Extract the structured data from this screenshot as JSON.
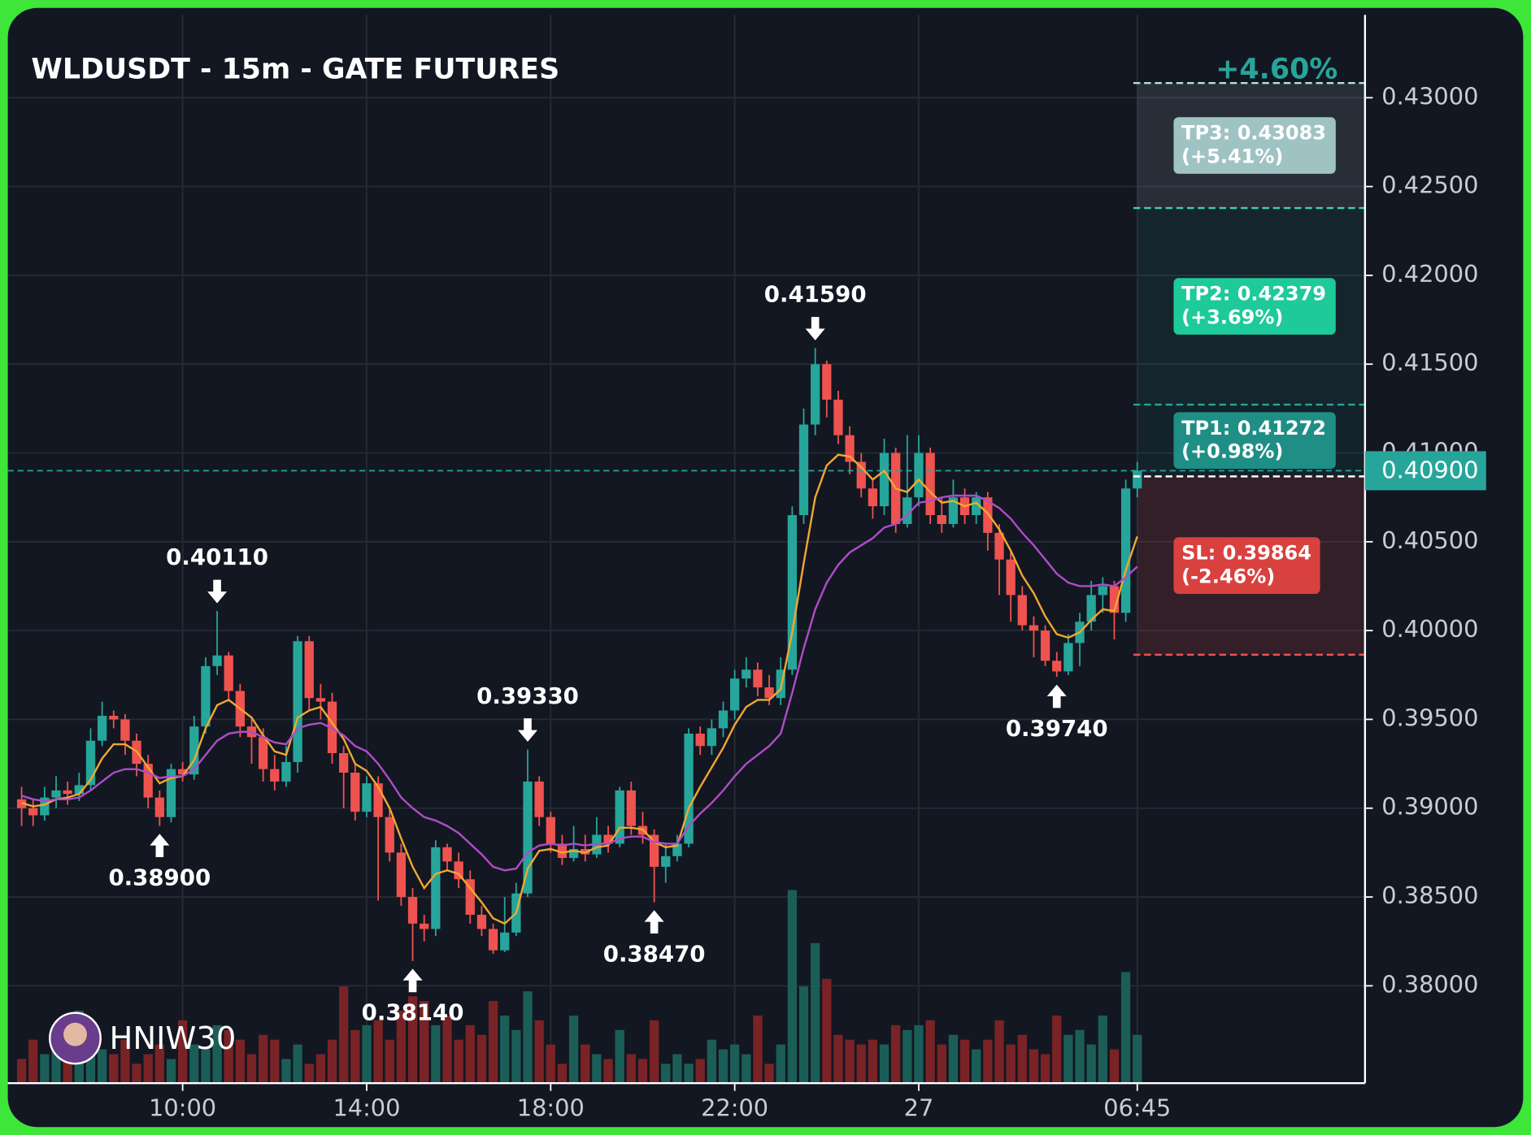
{
  "chart_data": {
    "type": "candlestick",
    "title": "WLDUSDT - 15m - GATE FUTURES",
    "watermark": "HNIW30",
    "change_label": "+4.60%",
    "up_color": "#26a69a",
    "down_color": "#ef5350",
    "grid": true,
    "xlim": [
      -1.2,
      116.8
    ],
    "xticks": [
      {
        "value": 14,
        "label": "10:00"
      },
      {
        "value": 30,
        "label": "14:00"
      },
      {
        "value": 46,
        "label": "18:00"
      },
      {
        "value": 62,
        "label": "22:00"
      },
      {
        "value": 78,
        "label": "27"
      },
      {
        "value": 97,
        "label": "06:45"
      }
    ],
    "ylim": [
      0.37452,
      0.43467
    ],
    "yticks": [
      {
        "value": 0.38,
        "label": "0.38000"
      },
      {
        "value": 0.385,
        "label": "0.38500"
      },
      {
        "value": 0.39,
        "label": "0.39000"
      },
      {
        "value": 0.395,
        "label": "0.39500"
      },
      {
        "value": 0.4,
        "label": "0.40000"
      },
      {
        "value": 0.405,
        "label": "0.40500"
      },
      {
        "value": 0.41,
        "label": "0.41000"
      },
      {
        "value": 0.415,
        "label": "0.41500"
      },
      {
        "value": 0.42,
        "label": "0.42000"
      },
      {
        "value": 0.425,
        "label": "0.42500"
      },
      {
        "value": 0.43,
        "label": "0.43000"
      }
    ],
    "open": [
      0.3905,
      0.39,
      0.3896,
      0.3906,
      0.391,
      0.3908,
      0.3913,
      0.3938,
      0.3952,
      0.395,
      0.3938,
      0.3925,
      0.3906,
      0.3895,
      0.3922,
      0.3919,
      0.3946,
      0.398,
      0.3986,
      0.3966,
      0.3946,
      0.394,
      0.3922,
      0.3915,
      0.3926,
      0.3994,
      0.3962,
      0.396,
      0.3931,
      0.392,
      0.3898,
      0.3914,
      0.3895,
      0.3875,
      0.385,
      0.3835,
      0.3832,
      0.3878,
      0.387,
      0.386,
      0.384,
      0.3832,
      0.382,
      0.383,
      0.3852,
      0.3915,
      0.3895,
      0.388,
      0.3872,
      0.3877,
      0.3874,
      0.3885,
      0.388,
      0.391,
      0.389,
      0.3885,
      0.3867,
      0.3873,
      0.388,
      0.3942,
      0.3935,
      0.3945,
      0.3955,
      0.3973,
      0.3978,
      0.3968,
      0.3962,
      0.3978,
      0.4065,
      0.4116,
      0.415,
      0.413,
      0.411,
      0.4095,
      0.408,
      0.407,
      0.41,
      0.406,
      0.4075,
      0.41,
      0.4065,
      0.406,
      0.4075,
      0.4065,
      0.4075,
      0.4055,
      0.404,
      0.402,
      0.4003,
      0.4,
      0.3983,
      0.3977,
      0.3993,
      0.4005,
      0.402,
      0.4025,
      0.401,
      0.408
    ],
    "high": [
      0.3912,
      0.3905,
      0.3912,
      0.3918,
      0.3915,
      0.392,
      0.3945,
      0.396,
      0.3955,
      0.3953,
      0.3942,
      0.393,
      0.391,
      0.3925,
      0.3926,
      0.3952,
      0.3985,
      0.4011,
      0.3988,
      0.397,
      0.395,
      0.3945,
      0.393,
      0.3935,
      0.3997,
      0.3997,
      0.397,
      0.3965,
      0.3935,
      0.3925,
      0.3918,
      0.3918,
      0.39,
      0.388,
      0.3855,
      0.384,
      0.3882,
      0.388,
      0.3875,
      0.3865,
      0.3845,
      0.3835,
      0.385,
      0.3858,
      0.3933,
      0.3918,
      0.3898,
      0.3885,
      0.389,
      0.3885,
      0.3895,
      0.389,
      0.3912,
      0.3915,
      0.3898,
      0.3888,
      0.388,
      0.3885,
      0.3945,
      0.3946,
      0.395,
      0.396,
      0.3978,
      0.3985,
      0.3982,
      0.3975,
      0.3985,
      0.407,
      0.4125,
      0.4159,
      0.4152,
      0.4135,
      0.4115,
      0.41,
      0.4085,
      0.4108,
      0.4103,
      0.411,
      0.411,
      0.4103,
      0.4075,
      0.4085,
      0.408,
      0.4078,
      0.4078,
      0.406,
      0.4045,
      0.4025,
      0.4008,
      0.4003,
      0.3988,
      0.3998,
      0.401,
      0.4028,
      0.403,
      0.4028,
      0.4085,
      0.4095
    ],
    "low": [
      0.389,
      0.389,
      0.3893,
      0.39,
      0.3902,
      0.3904,
      0.391,
      0.3935,
      0.3945,
      0.393,
      0.3918,
      0.39,
      0.389,
      0.3892,
      0.3915,
      0.3916,
      0.3942,
      0.3975,
      0.396,
      0.394,
      0.3925,
      0.3915,
      0.391,
      0.3912,
      0.392,
      0.3955,
      0.395,
      0.3925,
      0.39,
      0.3893,
      0.3895,
      0.3848,
      0.387,
      0.3845,
      0.3814,
      0.3825,
      0.3828,
      0.3865,
      0.3855,
      0.3835,
      0.3828,
      0.3818,
      0.3819,
      0.3828,
      0.385,
      0.389,
      0.3875,
      0.3868,
      0.387,
      0.387,
      0.3872,
      0.3875,
      0.3878,
      0.3885,
      0.388,
      0.3847,
      0.3858,
      0.387,
      0.3878,
      0.393,
      0.393,
      0.394,
      0.395,
      0.3968,
      0.3963,
      0.3958,
      0.3958,
      0.3975,
      0.406,
      0.411,
      0.412,
      0.4105,
      0.4088,
      0.4075,
      0.4063,
      0.4065,
      0.4055,
      0.4058,
      0.407,
      0.406,
      0.4055,
      0.4058,
      0.406,
      0.406,
      0.4045,
      0.402,
      0.4005,
      0.4,
      0.3985,
      0.398,
      0.3974,
      0.3975,
      0.398,
      0.4,
      0.401,
      0.3995,
      0.4005,
      0.4075
    ],
    "close": [
      0.39,
      0.3896,
      0.3906,
      0.391,
      0.3908,
      0.3913,
      0.3938,
      0.3952,
      0.395,
      0.3938,
      0.3925,
      0.3906,
      0.3895,
      0.3922,
      0.3919,
      0.3946,
      0.398,
      0.3986,
      0.3966,
      0.3946,
      0.394,
      0.3922,
      0.3915,
      0.3926,
      0.3994,
      0.3962,
      0.396,
      0.3931,
      0.392,
      0.3898,
      0.3914,
      0.3895,
      0.3875,
      0.385,
      0.3835,
      0.3832,
      0.3878,
      0.387,
      0.386,
      0.384,
      0.3832,
      0.382,
      0.383,
      0.3852,
      0.3915,
      0.3895,
      0.388,
      0.3872,
      0.3877,
      0.3874,
      0.3885,
      0.388,
      0.391,
      0.389,
      0.3885,
      0.3867,
      0.3873,
      0.388,
      0.3942,
      0.3935,
      0.3945,
      0.3955,
      0.3973,
      0.3978,
      0.3968,
      0.3962,
      0.3978,
      0.4065,
      0.4116,
      0.415,
      0.413,
      0.411,
      0.4095,
      0.408,
      0.407,
      0.41,
      0.406,
      0.4075,
      0.41,
      0.4065,
      0.406,
      0.4075,
      0.4065,
      0.4075,
      0.4055,
      0.404,
      0.402,
      0.4003,
      0.4,
      0.3983,
      0.3977,
      0.3993,
      0.4005,
      0.402,
      0.4025,
      0.401,
      0.408,
      0.409
    ],
    "volume_lim": [
      0,
      1106
    ],
    "volume": [
      25,
      45,
      30,
      40,
      55,
      75,
      60,
      35,
      30,
      45,
      20,
      30,
      40,
      25,
      65,
      40,
      35,
      60,
      55,
      45,
      30,
      50,
      45,
      25,
      40,
      20,
      30,
      45,
      100,
      55,
      60,
      65,
      45,
      75,
      90,
      85,
      60,
      70,
      45,
      60,
      50,
      85,
      70,
      55,
      95,
      65,
      40,
      20,
      70,
      40,
      30,
      25,
      55,
      30,
      25,
      65,
      20,
      30,
      20,
      25,
      45,
      35,
      40,
      30,
      70,
      20,
      40,
      200,
      100,
      145,
      108,
      50,
      45,
      40,
      45,
      40,
      60,
      55,
      60,
      65,
      40,
      50,
      45,
      35,
      45,
      65,
      40,
      50,
      35,
      30,
      70,
      50,
      55,
      40,
      70,
      35,
      115,
      50
    ],
    "ma": [
      {
        "color": "#f0a830",
        "values": [
          0.3903,
          0.3901,
          0.3902,
          0.3905,
          0.3906,
          0.3908,
          0.3916,
          0.3928,
          0.3936,
          0.3936,
          0.3932,
          0.3923,
          0.3914,
          0.3917,
          0.3918,
          0.3927,
          0.3945,
          0.3958,
          0.3961,
          0.3956,
          0.3951,
          0.3941,
          0.3932,
          0.393,
          0.3951,
          0.3955,
          0.3957,
          0.3948,
          0.3939,
          0.3925,
          0.3921,
          0.3912,
          0.39,
          0.3883,
          0.3867,
          0.3855,
          0.3863,
          0.3865,
          0.3863,
          0.3855,
          0.3847,
          0.3838,
          0.3835,
          0.3841,
          0.3866,
          0.3876,
          0.3877,
          0.3875,
          0.3876,
          0.3875,
          0.3878,
          0.3879,
          0.3889,
          0.3889,
          0.3888,
          0.3881,
          0.3878,
          0.3879,
          0.39,
          0.3912,
          0.3923,
          0.3934,
          0.3947,
          0.3957,
          0.3961,
          0.3961,
          0.3967,
          0.3999,
          0.4038,
          0.4075,
          0.4093,
          0.4099,
          0.4098,
          0.4092,
          0.4085,
          0.409,
          0.408,
          0.4078,
          0.4085,
          0.4078,
          0.4072,
          0.4073,
          0.407,
          0.4072,
          0.4066,
          0.4057,
          0.4045,
          0.4031,
          0.4021,
          0.4008,
          0.3998,
          0.3996,
          0.3999,
          0.4006,
          0.4012,
          0.4011,
          0.4034,
          0.4053
        ]
      },
      {
        "color": "#b04cc8",
        "values": [
          0.3907,
          0.3905,
          0.3904,
          0.3905,
          0.3905,
          0.3906,
          0.391,
          0.3915,
          0.392,
          0.3922,
          0.3922,
          0.392,
          0.3917,
          0.3918,
          0.3918,
          0.3922,
          0.393,
          0.3938,
          0.3942,
          0.3943,
          0.3943,
          0.394,
          0.3937,
          0.3936,
          0.3945,
          0.3947,
          0.3948,
          0.3945,
          0.3941,
          0.3935,
          0.3932,
          0.3925,
          0.3916,
          0.3906,
          0.39,
          0.3895,
          0.3893,
          0.389,
          0.3886,
          0.388,
          0.3874,
          0.3867,
          0.3865,
          0.3866,
          0.3875,
          0.3879,
          0.388,
          0.3879,
          0.388,
          0.3879,
          0.388,
          0.388,
          0.3883,
          0.3884,
          0.3884,
          0.3881,
          0.388,
          0.388,
          0.389,
          0.3897,
          0.3903,
          0.391,
          0.3918,
          0.3925,
          0.393,
          0.3935,
          0.3942,
          0.3965,
          0.399,
          0.4012,
          0.4027,
          0.4037,
          0.4044,
          0.4048,
          0.4052,
          0.4058,
          0.406,
          0.4065,
          0.4072,
          0.4073,
          0.4075,
          0.4076,
          0.4076,
          0.4076,
          0.4073,
          0.4069,
          0.4063,
          0.4055,
          0.4048,
          0.404,
          0.4032,
          0.4027,
          0.4025,
          0.4025,
          0.4026,
          0.4025,
          0.403,
          0.4036
        ]
      }
    ],
    "annotations": [
      {
        "label": "0.40110",
        "x": 17,
        "y": 0.4011,
        "direction": "down"
      },
      {
        "label": "0.38900",
        "x": 12,
        "y": 0.389,
        "direction": "up"
      },
      {
        "label": "0.38140",
        "x": 34,
        "y": 0.3814,
        "direction": "up"
      },
      {
        "label": "0.39330",
        "x": 44,
        "y": 0.3933,
        "direction": "down"
      },
      {
        "label": "0.38470",
        "x": 55,
        "y": 0.3847,
        "direction": "up"
      },
      {
        "label": "0.41590",
        "x": 69,
        "y": 0.4159,
        "direction": "down"
      },
      {
        "label": "0.39740",
        "x": 90,
        "y": 0.3974,
        "direction": "up"
      }
    ],
    "entry": 0.40868,
    "price_tag": {
      "value": 0.409,
      "label": "0.40900",
      "color": "#26a69a"
    },
    "levels": [
      {
        "label": "TP3: 0.43083",
        "change": "(+5.41%)",
        "value": 0.43083,
        "color": "#9fc3c3",
        "line_color": "#b2dfdb",
        "zone": "rgba(200,212,225,0.12)"
      },
      {
        "label": "TP2: 0.42379",
        "change": "(+3.69%)",
        "value": 0.42379,
        "color": "#1ec99a",
        "line_color": "#3fd1b0",
        "zone": "rgba(38,166,154,0.10)"
      },
      {
        "label": "TP1: 0.41272",
        "change": "(+0.98%)",
        "value": 0.41272,
        "color": "#1f8f86",
        "line_color": "#26a69a",
        "zone": "rgba(38,166,154,0.08)"
      },
      {
        "label": "SL: 0.39864",
        "change": "(-2.46%)",
        "value": 0.39864,
        "color": "#d9413f",
        "line_color": "#ef5350",
        "zone": "rgba(239,83,80,0.14)"
      }
    ]
  }
}
